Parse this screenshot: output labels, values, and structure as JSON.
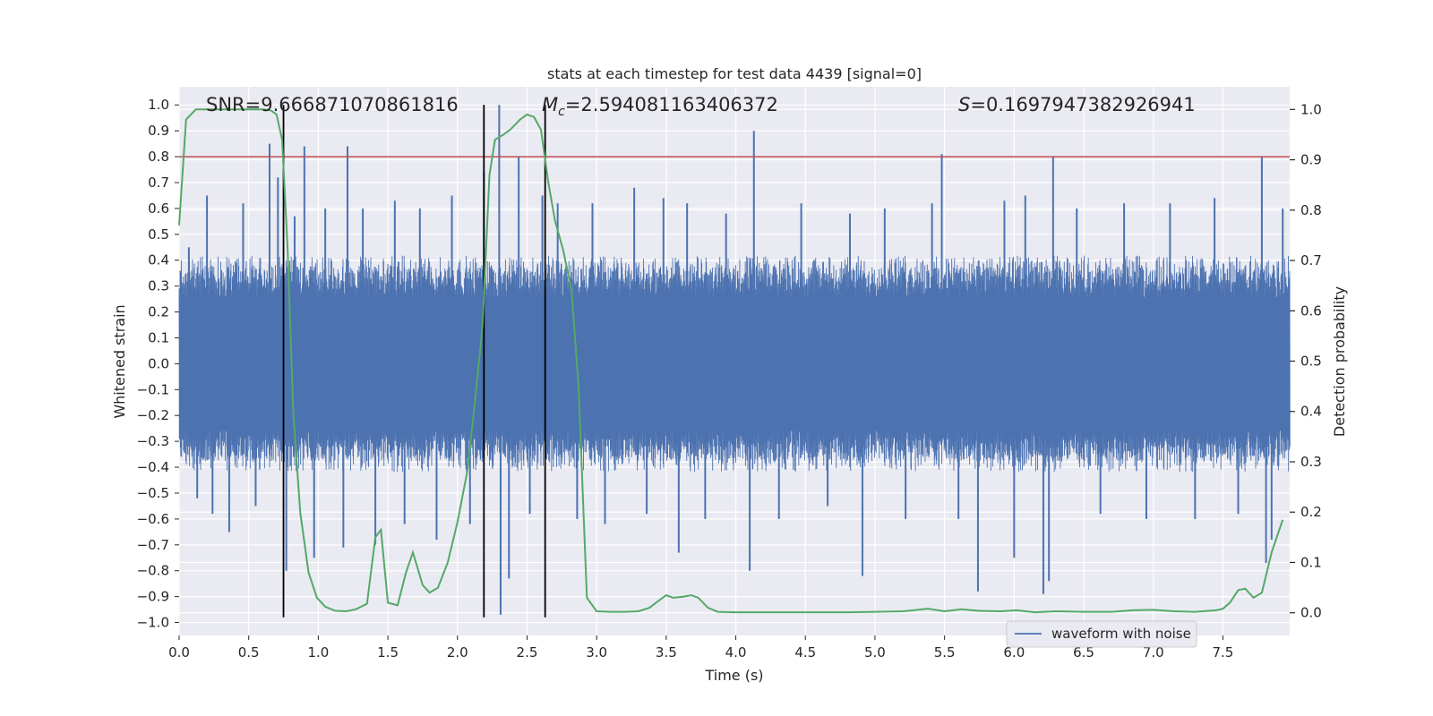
{
  "chart_data": {
    "type": "line",
    "title": "stats at each timestep for test data 4439 [signal=0]",
    "xlabel": "Time (s)",
    "ylabel_left": "Whitened strain",
    "ylabel_right": "Detection probability",
    "xlim": [
      0.0,
      7.98
    ],
    "ylim_left": [
      -1.05,
      1.07
    ],
    "ylim_right": [
      -0.045,
      1.045
    ],
    "x_ticks": [
      0.0,
      0.5,
      1.0,
      1.5,
      2.0,
      2.5,
      3.0,
      3.5,
      4.0,
      4.5,
      5.0,
      5.5,
      6.0,
      6.5,
      7.0,
      7.5
    ],
    "x_tick_labels": [
      "0.0",
      "0.5",
      "1.0",
      "1.5",
      "2.0",
      "2.5",
      "3.0",
      "3.5",
      "4.0",
      "4.5",
      "5.0",
      "5.5",
      "6.0",
      "6.5",
      "7.0",
      "7.5"
    ],
    "y_left_ticks": [
      -1.0,
      -0.9,
      -0.8,
      -0.7,
      -0.6,
      -0.5,
      -0.4,
      -0.3,
      -0.2,
      -0.1,
      0.0,
      0.1,
      0.2,
      0.3,
      0.4,
      0.5,
      0.6,
      0.7,
      0.8,
      0.9,
      1.0
    ],
    "y_left_tick_labels": [
      "−1.0",
      "−0.9",
      "−0.8",
      "−0.7",
      "−0.6",
      "−0.5",
      "−0.4",
      "−0.3",
      "−0.2",
      "−0.1",
      "0.0",
      "0.1",
      "0.2",
      "0.3",
      "0.4",
      "0.5",
      "0.6",
      "0.7",
      "0.8",
      "0.9",
      "1.0"
    ],
    "y_right_ticks": [
      0.0,
      0.1,
      0.2,
      0.3,
      0.4,
      0.5,
      0.6,
      0.7,
      0.8,
      0.9,
      1.0
    ],
    "y_right_tick_labels": [
      "0.0",
      "0.1",
      "0.2",
      "0.3",
      "0.4",
      "0.5",
      "0.6",
      "0.7",
      "0.8",
      "0.9",
      "1.0"
    ],
    "grid": true,
    "legend_placement": "lower-right",
    "annotations": {
      "snr": "SNR=9.666871070861816",
      "mc_symbol": "M",
      "mc_subscript": "c",
      "mc_value": "=2.594081163406372",
      "s_symbol": "S",
      "s_value": "=0.1697947382926941"
    },
    "threshold_line": {
      "y": 0.8,
      "color": "#c44e52"
    },
    "vertical_lines": [
      0.75,
      2.19,
      2.63
    ],
    "waveform": {
      "name": "waveform with noise",
      "color": "#4c72b0",
      "typical_amplitude": 0.38,
      "spikes": [
        [
          0.07,
          0.45
        ],
        [
          0.13,
          -0.52
        ],
        [
          0.2,
          0.65
        ],
        [
          0.24,
          -0.58
        ],
        [
          0.36,
          -0.65
        ],
        [
          0.46,
          0.62
        ],
        [
          0.55,
          -0.55
        ],
        [
          0.65,
          0.85
        ],
        [
          0.71,
          0.72
        ],
        [
          0.77,
          -0.8
        ],
        [
          0.83,
          0.57
        ],
        [
          0.9,
          0.84
        ],
        [
          0.97,
          -0.75
        ],
        [
          1.05,
          0.6
        ],
        [
          1.18,
          -0.71
        ],
        [
          1.21,
          0.84
        ],
        [
          1.32,
          0.6
        ],
        [
          1.41,
          -0.7
        ],
        [
          1.55,
          0.63
        ],
        [
          1.62,
          -0.62
        ],
        [
          1.73,
          0.6
        ],
        [
          1.85,
          -0.68
        ],
        [
          1.96,
          0.65
        ],
        [
          2.09,
          -0.62
        ],
        [
          2.19,
          0.74
        ],
        [
          2.3,
          1.0
        ],
        [
          2.31,
          -0.97
        ],
        [
          2.37,
          -0.83
        ],
        [
          2.44,
          0.8
        ],
        [
          2.52,
          -0.58
        ],
        [
          2.61,
          0.65
        ],
        [
          2.72,
          0.62
        ],
        [
          2.86,
          -0.6
        ],
        [
          2.97,
          0.62
        ],
        [
          3.06,
          -0.62
        ],
        [
          3.27,
          0.68
        ],
        [
          3.36,
          -0.58
        ],
        [
          3.48,
          0.64
        ],
        [
          3.59,
          -0.73
        ],
        [
          3.65,
          0.62
        ],
        [
          3.78,
          -0.6
        ],
        [
          3.93,
          0.58
        ],
        [
          4.1,
          -0.8
        ],
        [
          4.13,
          0.9
        ],
        [
          4.31,
          -0.6
        ],
        [
          4.47,
          0.62
        ],
        [
          4.66,
          -0.55
        ],
        [
          4.82,
          0.58
        ],
        [
          4.91,
          -0.82
        ],
        [
          5.07,
          0.6
        ],
        [
          5.22,
          -0.6
        ],
        [
          5.41,
          0.62
        ],
        [
          5.48,
          0.81
        ],
        [
          5.6,
          -0.6
        ],
        [
          5.74,
          -0.88
        ],
        [
          5.93,
          0.63
        ],
        [
          6.0,
          -0.75
        ],
        [
          6.08,
          0.65
        ],
        [
          6.21,
          -0.89
        ],
        [
          6.25,
          -0.84
        ],
        [
          6.28,
          0.8
        ],
        [
          6.45,
          0.6
        ],
        [
          6.62,
          -0.58
        ],
        [
          6.79,
          0.62
        ],
        [
          6.95,
          -0.6
        ],
        [
          7.12,
          0.62
        ],
        [
          7.3,
          -0.6
        ],
        [
          7.44,
          0.64
        ],
        [
          7.61,
          -0.58
        ],
        [
          7.78,
          0.8
        ],
        [
          7.81,
          -0.77
        ],
        [
          7.85,
          -0.68
        ],
        [
          7.93,
          0.6
        ]
      ]
    },
    "detection_probability": {
      "color": "#55a868",
      "x": [
        0.0,
        0.05,
        0.12,
        0.2,
        0.3,
        0.4,
        0.5,
        0.6,
        0.66,
        0.7,
        0.74,
        0.78,
        0.82,
        0.87,
        0.93,
        0.99,
        1.05,
        1.12,
        1.2,
        1.27,
        1.35,
        1.41,
        1.45,
        1.5,
        1.57,
        1.63,
        1.68,
        1.75,
        1.8,
        1.86,
        1.93,
        2.0,
        2.07,
        2.13,
        2.18,
        2.23,
        2.27,
        2.33,
        2.38,
        2.45,
        2.5,
        2.55,
        2.6,
        2.65,
        2.7,
        2.76,
        2.82,
        2.87,
        2.93,
        3.0,
        3.1,
        3.2,
        3.3,
        3.38,
        3.45,
        3.5,
        3.55,
        3.62,
        3.68,
        3.73,
        3.8,
        3.87,
        4.0,
        4.2,
        4.5,
        4.8,
        5.0,
        5.2,
        5.38,
        5.5,
        5.62,
        5.75,
        5.9,
        6.02,
        6.15,
        6.3,
        6.5,
        6.7,
        6.85,
        7.0,
        7.15,
        7.3,
        7.45,
        7.5,
        7.55,
        7.61,
        7.66,
        7.72,
        7.78,
        7.85,
        7.93
      ],
      "y": [
        0.77,
        0.98,
        1.0,
        1.0,
        1.0,
        1.0,
        1.0,
        1.0,
        0.998,
        0.99,
        0.94,
        0.72,
        0.4,
        0.2,
        0.08,
        0.03,
        0.012,
        0.004,
        0.003,
        0.007,
        0.018,
        0.15,
        0.165,
        0.02,
        0.015,
        0.08,
        0.12,
        0.055,
        0.04,
        0.05,
        0.1,
        0.18,
        0.28,
        0.43,
        0.57,
        0.87,
        0.94,
        0.95,
        0.96,
        0.98,
        0.99,
        0.985,
        0.96,
        0.86,
        0.78,
        0.72,
        0.64,
        0.45,
        0.03,
        0.003,
        0.002,
        0.002,
        0.003,
        0.01,
        0.025,
        0.035,
        0.03,
        0.032,
        0.035,
        0.03,
        0.01,
        0.002,
        0.001,
        0.001,
        0.001,
        0.001,
        0.002,
        0.003,
        0.008,
        0.003,
        0.007,
        0.004,
        0.003,
        0.005,
        0.001,
        0.003,
        0.002,
        0.002,
        0.005,
        0.006,
        0.003,
        0.002,
        0.005,
        0.008,
        0.02,
        0.045,
        0.048,
        0.03,
        0.04,
        0.12,
        0.185
      ]
    }
  }
}
